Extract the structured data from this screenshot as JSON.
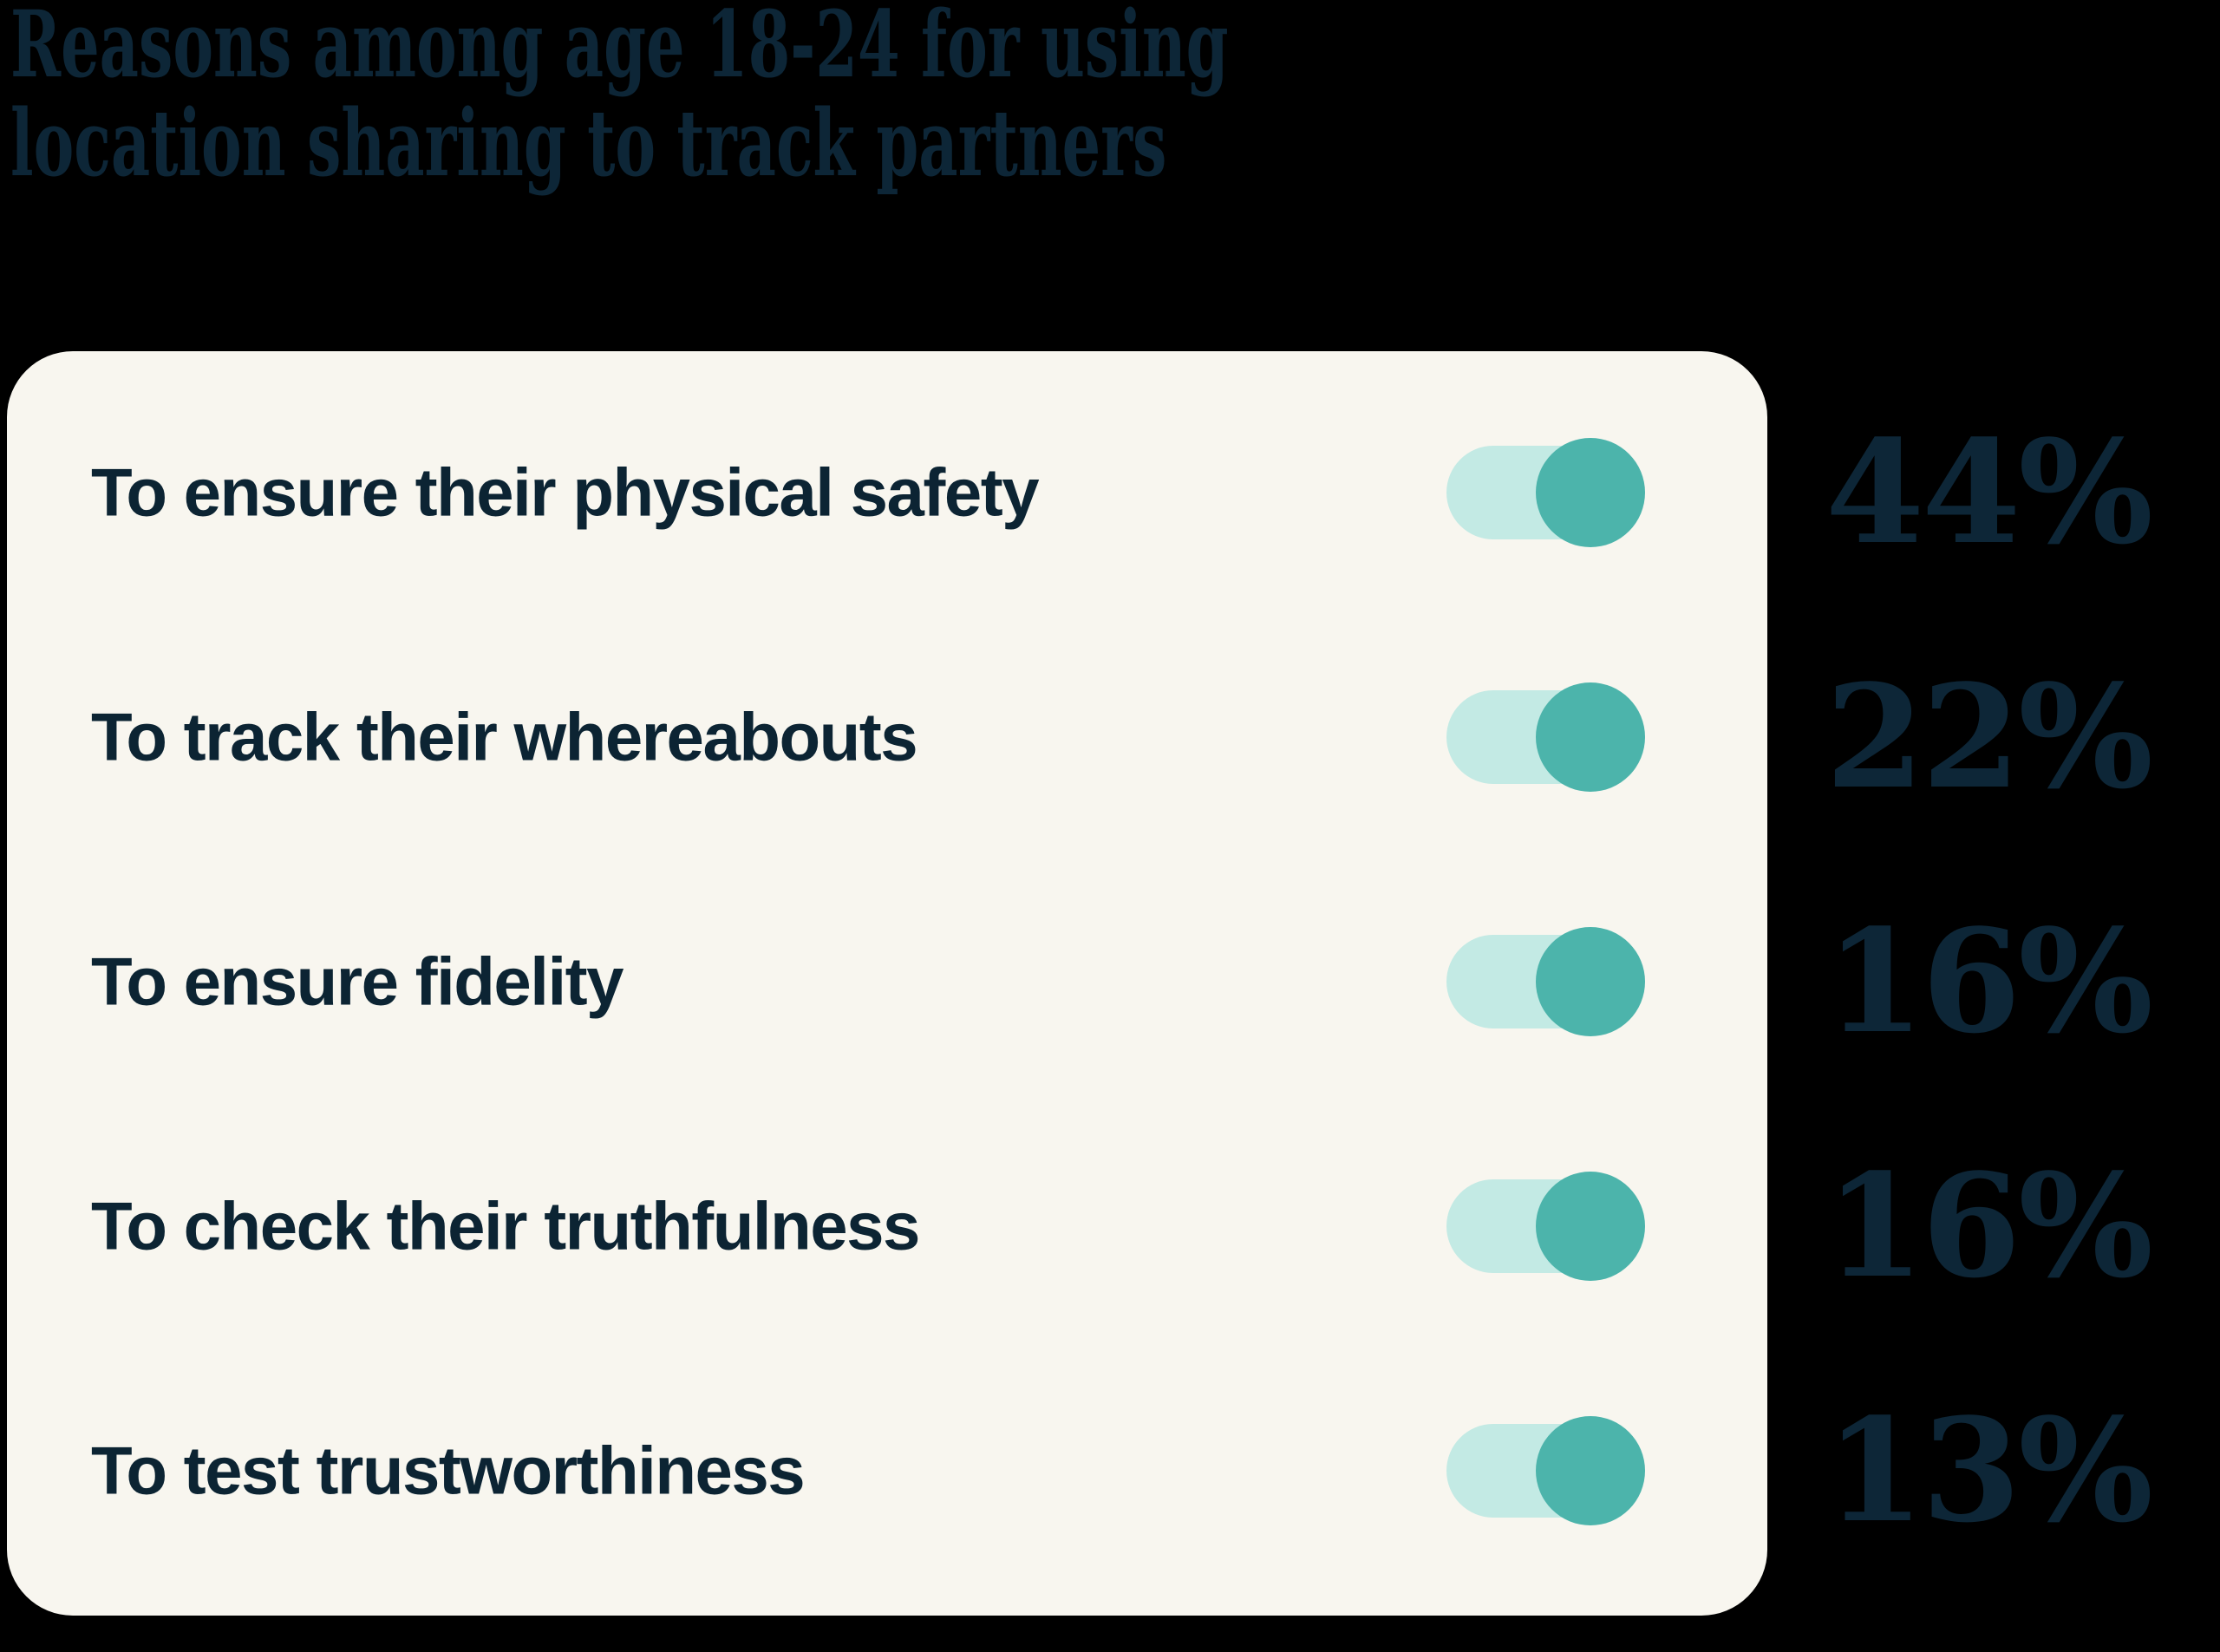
{
  "title": {
    "line1": "Reasons among age 18-24 for using",
    "line2": "location sharing to track partners",
    "full": "Reasons among age 18-24 for using location sharing to track partners"
  },
  "rows": [
    {
      "label": "To ensure their physical safety",
      "value": "44%"
    },
    {
      "label": "To track their whereabouts",
      "value": "22%"
    },
    {
      "label": "To ensure fidelity",
      "value": "16%"
    },
    {
      "label": "To check their truthfulness",
      "value": "16%"
    },
    {
      "label": "To test trustworthiness",
      "value": "13%"
    }
  ],
  "chart_data": {
    "type": "bar",
    "title": "Reasons among age 18-24 for using location sharing to track partners",
    "categories": [
      "To ensure their physical safety",
      "To track their whereabouts",
      "To ensure fidelity",
      "To check their truthfulness",
      "To test trustworthiness"
    ],
    "values": [
      44,
      22,
      16,
      16,
      13
    ],
    "unit": "%",
    "xlabel": "",
    "ylabel": "",
    "legend": false,
    "grid": false,
    "annotations": "each category is decorated with an on-state toggle-switch icon; percentage data labels are shown outside the card on the right"
  },
  "colors": {
    "bg": "#000000",
    "card": "#F8F6EF",
    "ink": "#0D2637",
    "label-ink": "#0C2433",
    "pill": "#C3EAE4",
    "knob": "#4CB4AB"
  }
}
